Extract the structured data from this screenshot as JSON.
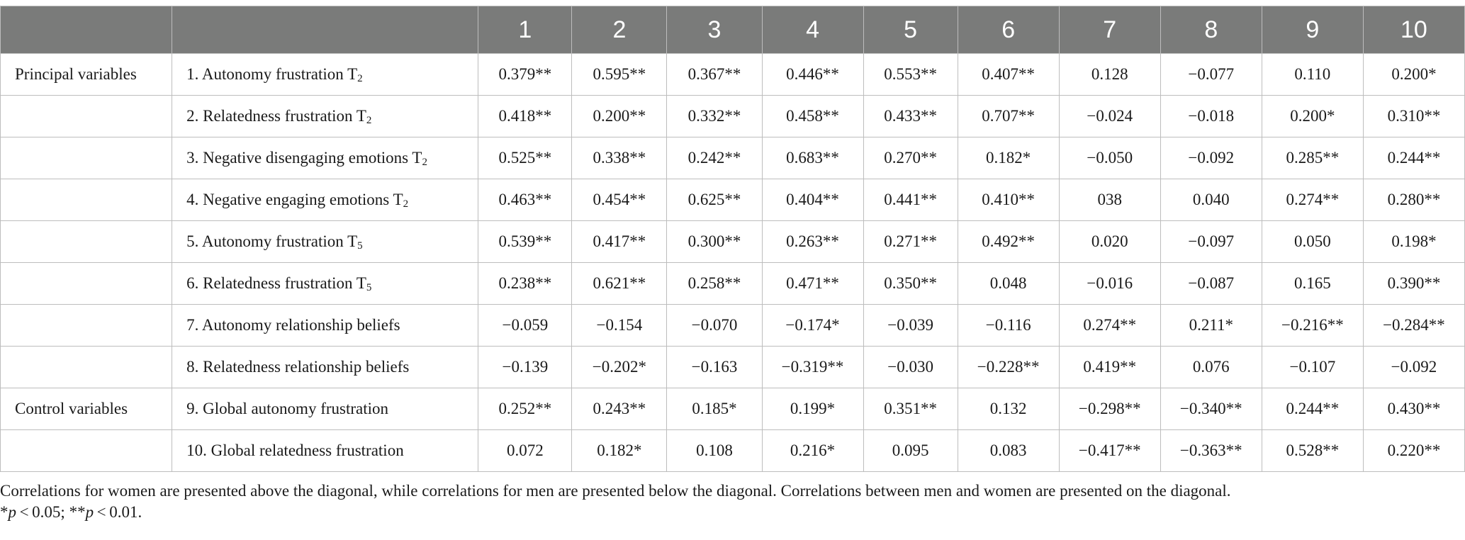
{
  "table": {
    "headers": [
      "",
      "",
      "1",
      "2",
      "3",
      "4",
      "5",
      "6",
      "7",
      "8",
      "9",
      "10"
    ],
    "rows": [
      {
        "group": "Principal variables",
        "var": "1. Autonomy frustration T",
        "sub": "2",
        "values": [
          "0.379**",
          "0.595**",
          "0.367**",
          "0.446**",
          "0.553**",
          "0.407**",
          "0.128",
          "−0.077",
          "0.110",
          "0.200*"
        ]
      },
      {
        "group": "",
        "var": "2. Relatedness frustration T",
        "sub": "2",
        "values": [
          "0.418**",
          "0.200**",
          "0.332**",
          "0.458**",
          "0.433**",
          "0.707**",
          "−0.024",
          "−0.018",
          "0.200*",
          "0.310**"
        ]
      },
      {
        "group": "",
        "var": "3. Negative disengaging emotions T",
        "sub": "2",
        "values": [
          "0.525**",
          "0.338**",
          "0.242**",
          "0.683**",
          "0.270**",
          "0.182*",
          "−0.050",
          "−0.092",
          "0.285**",
          "0.244**"
        ]
      },
      {
        "group": "",
        "var": "4. Negative engaging emotions T",
        "sub": "2",
        "values": [
          "0.463**",
          "0.454**",
          "0.625**",
          "0.404**",
          "0.441**",
          "0.410**",
          "038",
          "0.040",
          "0.274**",
          "0.280**"
        ]
      },
      {
        "group": "",
        "var": "5. Autonomy frustration T",
        "sub": "5",
        "values": [
          "0.539**",
          "0.417**",
          "0.300**",
          "0.263**",
          "0.271**",
          "0.492**",
          "0.020",
          "−0.097",
          "0.050",
          "0.198*"
        ]
      },
      {
        "group": "",
        "var": "6. Relatedness frustration T",
        "sub": "5",
        "values": [
          "0.238**",
          "0.621**",
          "0.258**",
          "0.471**",
          "0.350**",
          "0.048",
          "−0.016",
          "−0.087",
          "0.165",
          "0.390**"
        ]
      },
      {
        "group": "",
        "var": "7. Autonomy relationship beliefs",
        "sub": "",
        "values": [
          "−0.059",
          "−0.154",
          "−0.070",
          "−0.174*",
          "−0.039",
          "−0.116",
          "0.274**",
          "0.211*",
          "−0.216**",
          "−0.284**"
        ]
      },
      {
        "group": "",
        "var": "8. Relatedness relationship beliefs",
        "sub": "",
        "values": [
          "−0.139",
          "−0.202*",
          "−0.163",
          "−0.319**",
          "−0.030",
          "−0.228**",
          "0.419**",
          "0.076",
          "−0.107",
          "−0.092"
        ]
      },
      {
        "group": "Control variables",
        "var": "9. Global autonomy frustration",
        "sub": "",
        "values": [
          "0.252**",
          "0.243**",
          "0.185*",
          "0.199*",
          "0.351**",
          "0.132",
          "−0.298**",
          "−0.340**",
          "0.244**",
          "0.430**"
        ]
      },
      {
        "group": "",
        "var": "10. Global relatedness frustration",
        "sub": "",
        "values": [
          "0.072",
          "0.182*",
          "0.108",
          "0.216*",
          "0.095",
          "0.083",
          "−0.417**",
          "−0.363**",
          "0.528**",
          "0.220**"
        ]
      }
    ]
  },
  "note": {
    "line1": "Correlations for women are presented above the diagonal, while correlations for men are presented below the diagonal. Correlations between men and women are presented on the diagonal.",
    "line2_a": "*",
    "line2_b": "p",
    "line2_c": " < 0.05; **",
    "line2_d": "p",
    "line2_e": " < 0.01."
  },
  "colors": {
    "header_bg": "#7a7b7a",
    "header_text": "#ffffff",
    "grid": "#bdbdbd"
  }
}
